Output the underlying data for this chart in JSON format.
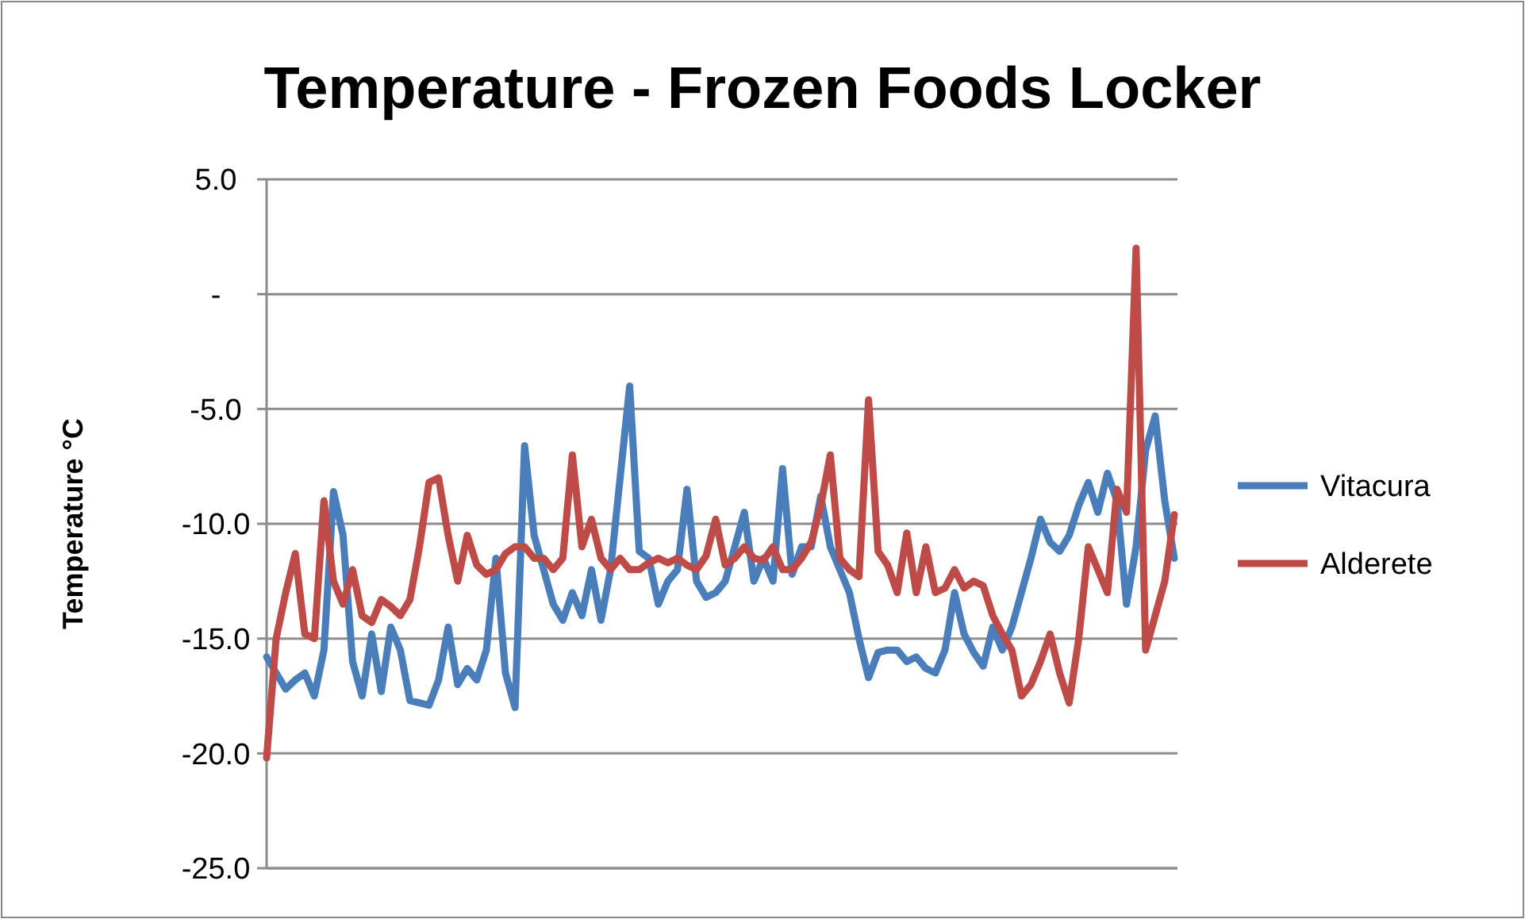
{
  "chart_data": {
    "type": "line",
    "title": "Temperature - Frozen Foods Locker",
    "ylabel": "Temperature °C",
    "categories": [
      null,
      null,
      null,
      null,
      null,
      null,
      null,
      null,
      null,
      null,
      null,
      null,
      null,
      null,
      null,
      null,
      null,
      null,
      null,
      null,
      null,
      null,
      null,
      null,
      null,
      null,
      null,
      null,
      null,
      null,
      null,
      null,
      null,
      null,
      null,
      null,
      null,
      null,
      null,
      null,
      null,
      null,
      null,
      null,
      null,
      null,
      null,
      null,
      null,
      null,
      null,
      null,
      null,
      null,
      null,
      null,
      null,
      null,
      null,
      null,
      null,
      null,
      null,
      null,
      null,
      null,
      null,
      null,
      null,
      null,
      null,
      null,
      null,
      null,
      null,
      null,
      null,
      null,
      null,
      null,
      null,
      null,
      null,
      null,
      null,
      null,
      null,
      null,
      null,
      null,
      null,
      null,
      null,
      null,
      null,
      null
    ],
    "series": [
      {
        "name": "Vitacura",
        "color": "#4a7ebb",
        "values": [
          -15.8,
          -16.5,
          -17.2,
          -16.8,
          -16.5,
          -17.5,
          -15.5,
          -8.6,
          -10.5,
          -16,
          -17.5,
          -14.8,
          -17.3,
          -14.5,
          -15.5,
          -17.7,
          -17.8,
          -17.9,
          -16.8,
          -14.5,
          -17,
          -16.3,
          -16.8,
          -15.5,
          -11.5,
          -16.5,
          -18,
          -6.6,
          -10.5,
          -12,
          -13.5,
          -14.2,
          -13,
          -14,
          -12,
          -14.2,
          -12,
          -8,
          -4,
          -11.2,
          -11.5,
          -13.5,
          -12.5,
          -12,
          -8.5,
          -12.5,
          -13.2,
          -13,
          -12.5,
          -11,
          -9.5,
          -12.5,
          -11.5,
          -12.5,
          -7.6,
          -12.2,
          -11,
          -11,
          -8.8,
          -11,
          -12,
          -13,
          -15,
          -16.7,
          -15.6,
          -15.5,
          -15.5,
          -16,
          -15.8,
          -16.3,
          -16.5,
          -15.5,
          -13,
          -14.8,
          -15.6,
          -16.2,
          -14.5,
          -15.5,
          -14.5,
          -13,
          -11.5,
          -9.8,
          -10.8,
          -11.2,
          -10.5,
          -9.2,
          -8.2,
          -9.5,
          -7.8,
          -9,
          -13.5,
          -11,
          -6.8,
          -5.3,
          -9,
          -11.5
        ]
      },
      {
        "name": "Alderete",
        "color": "#be4b48",
        "values": [
          -20.2,
          -15,
          -13,
          -11.3,
          -14.8,
          -15,
          -9,
          -12.5,
          -13.5,
          -12,
          -14,
          -14.3,
          -13.3,
          -13.6,
          -14,
          -13.3,
          -11,
          -8.2,
          -8,
          -10.5,
          -12.5,
          -10.5,
          -11.8,
          -12.2,
          -12,
          -11.3,
          -11,
          -11,
          -11.5,
          -11.5,
          -12,
          -11.5,
          -7,
          -11,
          -9.8,
          -11.5,
          -12,
          -11.5,
          -12,
          -12,
          -11.7,
          -11.5,
          -11.7,
          -11.5,
          -11.8,
          -12,
          -11.4,
          -9.8,
          -11.8,
          -11.5,
          -11,
          -11.5,
          -11.6,
          -11,
          -12,
          -12,
          -11.5,
          -10.8,
          -9.2,
          -7,
          -11.5,
          -12,
          -12.3,
          -4.6,
          -11.2,
          -11.8,
          -13,
          -10.4,
          -13,
          -11,
          -13,
          -12.8,
          -12,
          -12.8,
          -12.5,
          -12.7,
          -14,
          -14.8,
          -15.5,
          -17.5,
          -17,
          -16,
          -14.8,
          -16.5,
          -17.8,
          -15,
          -11,
          -12,
          -13,
          -8.5,
          -9.5,
          2,
          -15.5,
          -14,
          -12.5,
          -9.6
        ]
      }
    ],
    "ylim": [
      -25,
      5
    ],
    "yticks": [
      {
        "value": -25,
        "label": "-25.0"
      },
      {
        "value": -20,
        "label": "-20.0"
      },
      {
        "value": -15,
        "label": "-15.0"
      },
      {
        "value": -10,
        "label": "-10.0"
      },
      {
        "value": -5,
        "label": "-5.0"
      },
      {
        "value": 0,
        "label": "-"
      },
      {
        "value": 5,
        "label": "5.0"
      }
    ],
    "grid": "y",
    "legend": "right"
  }
}
